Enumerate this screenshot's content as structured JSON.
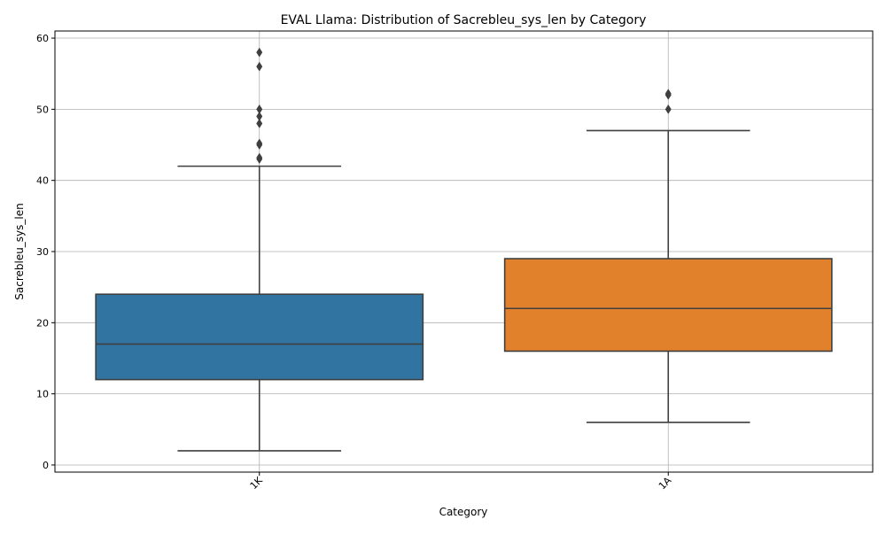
{
  "chart_data": {
    "type": "box",
    "title": "EVAL Llama: Distribution of Sacrebleu_sys_len by Category",
    "xlabel": "Category",
    "ylabel": "Sacrebleu_sys_len",
    "ylim": [
      -1,
      61
    ],
    "yticks": [
      0,
      10,
      20,
      30,
      40,
      50,
      60
    ],
    "grid": true,
    "categories": [
      "1K",
      "1A"
    ],
    "boxes": [
      {
        "category": "1K",
        "color": "#3274a1",
        "whisker_low": 2,
        "q1": 12,
        "median": 17,
        "q3": 24,
        "whisker_high": 42,
        "outliers": [
          43,
          43.2,
          45,
          45.2,
          48,
          49,
          50,
          56,
          58
        ]
      },
      {
        "category": "1A",
        "color": "#e1812c",
        "whisker_low": 6,
        "q1": 16,
        "median": 22,
        "q3": 29,
        "whisker_high": 47,
        "outliers": [
          50,
          52,
          52.2
        ]
      }
    ]
  }
}
